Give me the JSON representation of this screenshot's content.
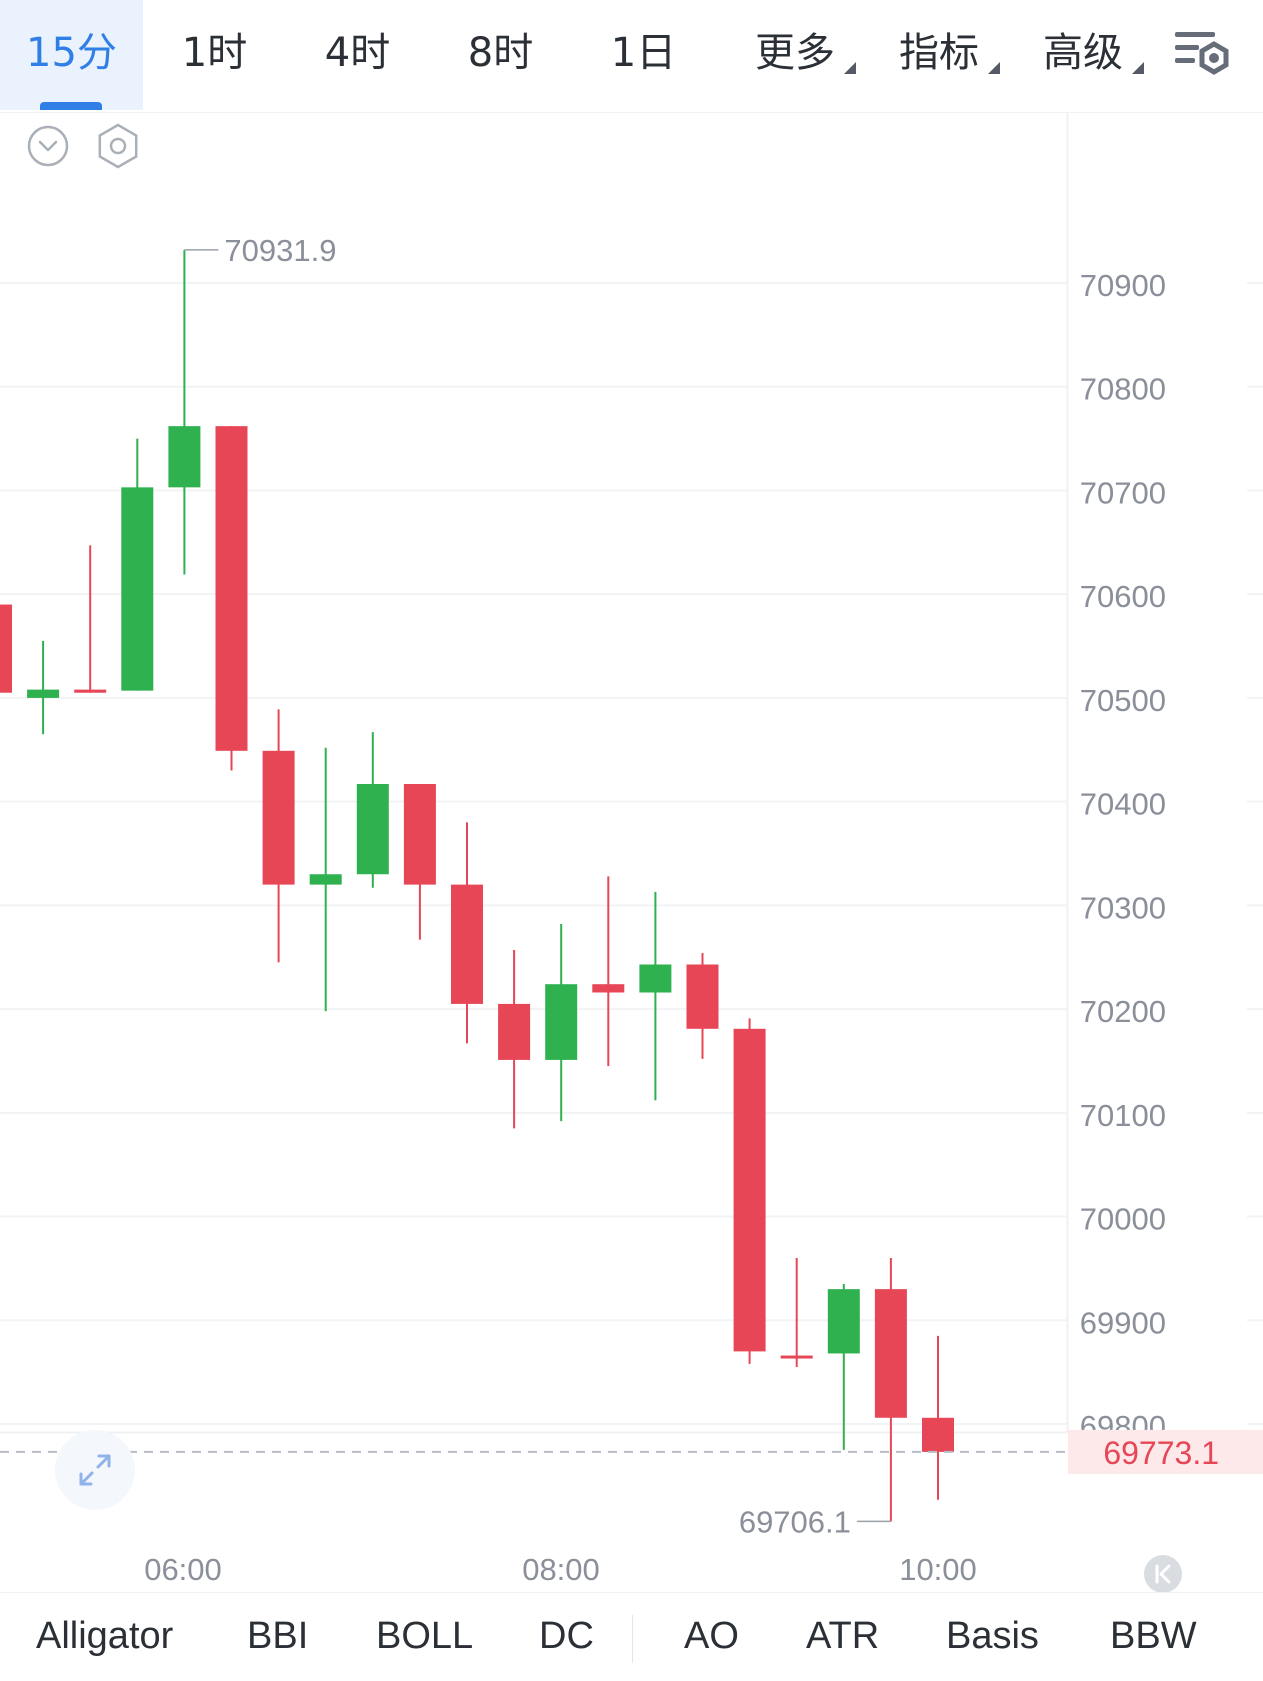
{
  "tabs": [
    {
      "label": "15分",
      "active": true
    },
    {
      "label": "1时",
      "active": false
    },
    {
      "label": "4时",
      "active": false
    },
    {
      "label": "8时",
      "active": false
    },
    {
      "label": "1日",
      "active": false
    },
    {
      "label": "更多",
      "active": false,
      "dropdown": true
    },
    {
      "label": "指标",
      "active": false,
      "dropdown": true
    },
    {
      "label": "高级",
      "active": false,
      "dropdown": true
    }
  ],
  "icons": {
    "settings": "chart-settings-icon",
    "collapse": "collapse-circle-icon",
    "gear": "hexagon-gear-icon",
    "expand": "expand-arrows-icon",
    "back_to_latest": "back-to-latest-icon"
  },
  "colors": {
    "up": "#2fb14f",
    "down": "#e64656",
    "accent": "#2f7fe6",
    "price_line": "#b8bcc4",
    "price_label_bg": "#fde9ea"
  },
  "chart_data": {
    "type": "candlestick",
    "y_axis_ticks": [
      70900,
      70800,
      70700,
      70600,
      70500,
      70400,
      70300,
      70200,
      70100,
      70000,
      69900,
      69800
    ],
    "ylim": [
      69690,
      70960
    ],
    "x_axis_ticks": [
      "06:00",
      "08:00",
      "10:00"
    ],
    "max_label": "70931.9",
    "min_label": "69706.1",
    "last_price": "69773.1",
    "interval": "15分",
    "candles": [
      {
        "open": 70590,
        "high": 70590,
        "low": 70505,
        "close": 70505
      },
      {
        "open": 70500,
        "high": 70555,
        "low": 70465,
        "close": 70508
      },
      {
        "open": 70508,
        "high": 70647,
        "low": 70505,
        "close": 70505
      },
      {
        "open": 70507,
        "high": 70750,
        "low": 70507,
        "close": 70703
      },
      {
        "open": 70703,
        "high": 70931.9,
        "low": 70619,
        "close": 70762
      },
      {
        "open": 70762,
        "high": 70762,
        "low": 70430,
        "close": 70449
      },
      {
        "open": 70449,
        "high": 70489,
        "low": 70245,
        "close": 70320
      },
      {
        "open": 70320,
        "high": 70452,
        "low": 70198,
        "close": 70330
      },
      {
        "open": 70330,
        "high": 70467,
        "low": 70317,
        "close": 70417
      },
      {
        "open": 70417,
        "high": 70417,
        "low": 70267,
        "close": 70320
      },
      {
        "open": 70320,
        "high": 70380,
        "low": 70167,
        "close": 70205
      },
      {
        "open": 70205,
        "high": 70257,
        "low": 70085,
        "close": 70151
      },
      {
        "open": 70151,
        "high": 70282,
        "low": 70092,
        "close": 70224
      },
      {
        "open": 70224,
        "high": 70328,
        "low": 70145,
        "close": 70216
      },
      {
        "open": 70216,
        "high": 70313,
        "low": 70112,
        "close": 70243
      },
      {
        "open": 70243,
        "high": 70254,
        "low": 70152,
        "close": 70181
      },
      {
        "open": 70181,
        "high": 70191,
        "low": 69858,
        "close": 69870
      },
      {
        "open": 69866,
        "high": 69960,
        "low": 69855,
        "close": 69866
      },
      {
        "open": 69868,
        "high": 69935,
        "low": 69775,
        "close": 69930
      },
      {
        "open": 69930,
        "high": 69960,
        "low": 69706.1,
        "close": 69806
      },
      {
        "open": 69806,
        "high": 69885,
        "low": 69727,
        "close": 69773.1
      }
    ]
  },
  "indicators": [
    "Alligator",
    "BBI",
    "BOLL",
    "DC",
    "AO",
    "ATR",
    "Basis",
    "BBW"
  ]
}
